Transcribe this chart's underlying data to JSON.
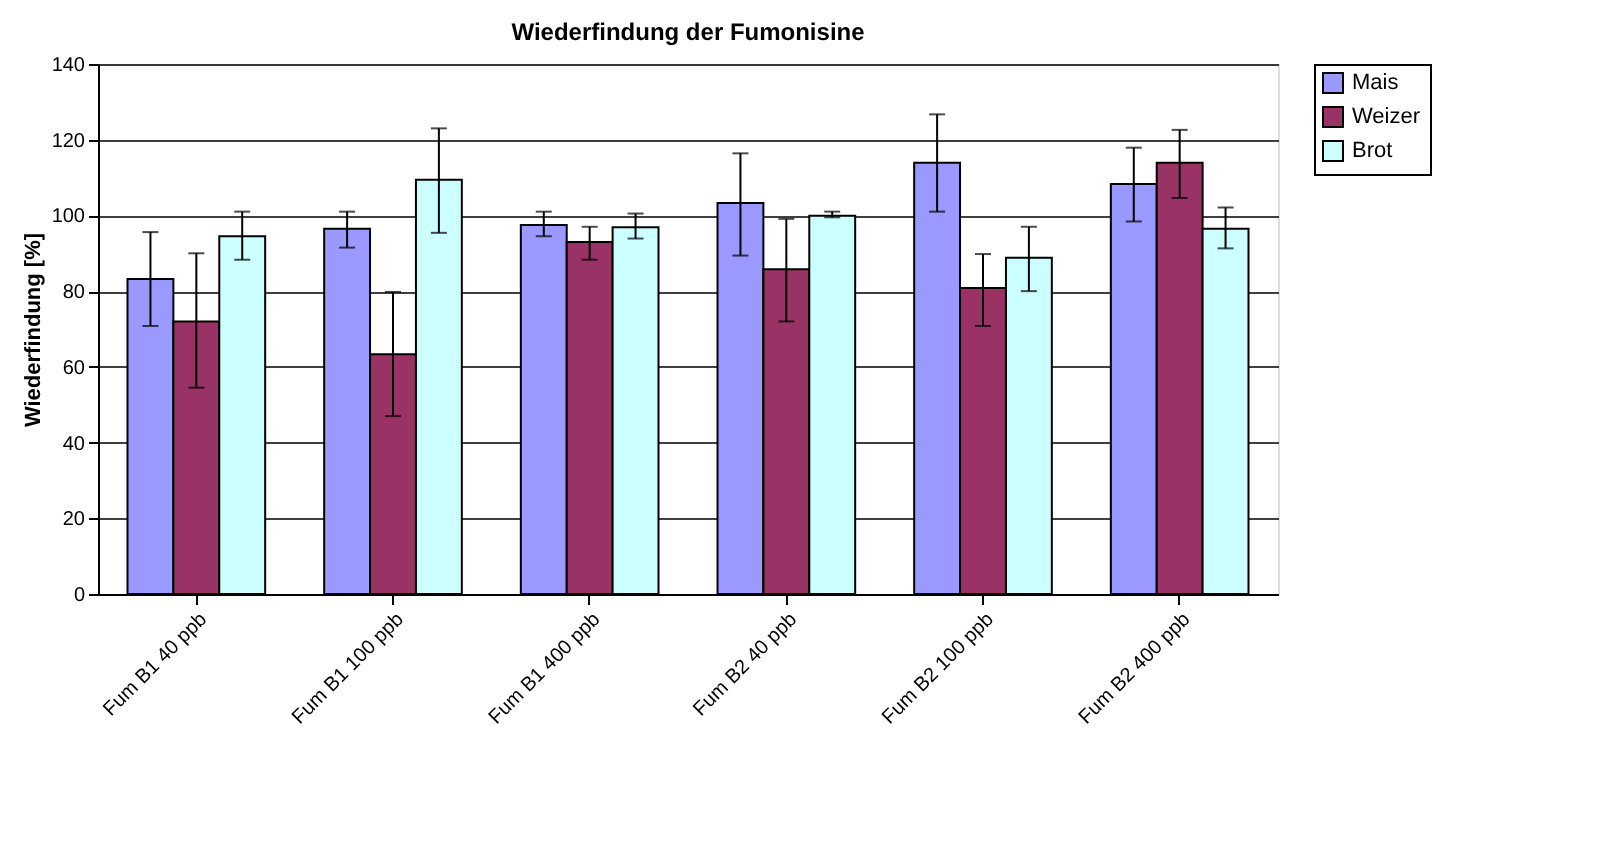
{
  "chart_data": {
    "type": "bar",
    "title": "Wiederfindung der Fumonisine",
    "ylabel": "Wiederfindung [%]",
    "categories": [
      "Fum B1 40 ppb",
      "Fum B1 100 ppb",
      "Fum B1 400 ppb",
      "Fum B2 40 ppb",
      "Fum B2 100 ppb",
      "Fum B2 400 ppb"
    ],
    "series": [
      {
        "name": "Mais",
        "color": "#9999ff",
        "values": [
          83.2,
          96.5,
          97.5,
          103.3,
          113.9,
          108.3
        ],
        "errors": [
          [
            70.8,
            95.6
          ],
          [
            91.5,
            101
          ],
          [
            94.5,
            101
          ],
          [
            89.4,
            116.4
          ],
          [
            101,
            126.7
          ],
          [
            98.4,
            117.9
          ]
        ]
      },
      {
        "name": "Weizer",
        "color": "#993366",
        "values": [
          72,
          63.3,
          93,
          85.8,
          80.8,
          113.9
        ],
        "errors": [
          [
            54.5,
            90
          ],
          [
            47,
            79.8
          ],
          [
            88.3,
            97
          ],
          [
            72,
            99.1
          ],
          [
            70.8,
            89.8
          ],
          [
            104.6,
            122.6
          ]
        ]
      },
      {
        "name": "Brot",
        "color": "#ccffff",
        "values": [
          94.5,
          109.4,
          96.9,
          99.9,
          88.8,
          96.5
        ],
        "errors": [
          [
            88.3,
            101
          ],
          [
            95.4,
            123
          ],
          [
            93.9,
            100.5
          ],
          [
            99.5,
            101
          ],
          [
            80,
            97
          ],
          [
            91.3,
            102.1
          ]
        ]
      }
    ],
    "ylim": [
      0,
      140
    ],
    "yticks": [
      0,
      20,
      40,
      60,
      80,
      100,
      120,
      140
    ],
    "grid": "y",
    "legend": "right"
  }
}
